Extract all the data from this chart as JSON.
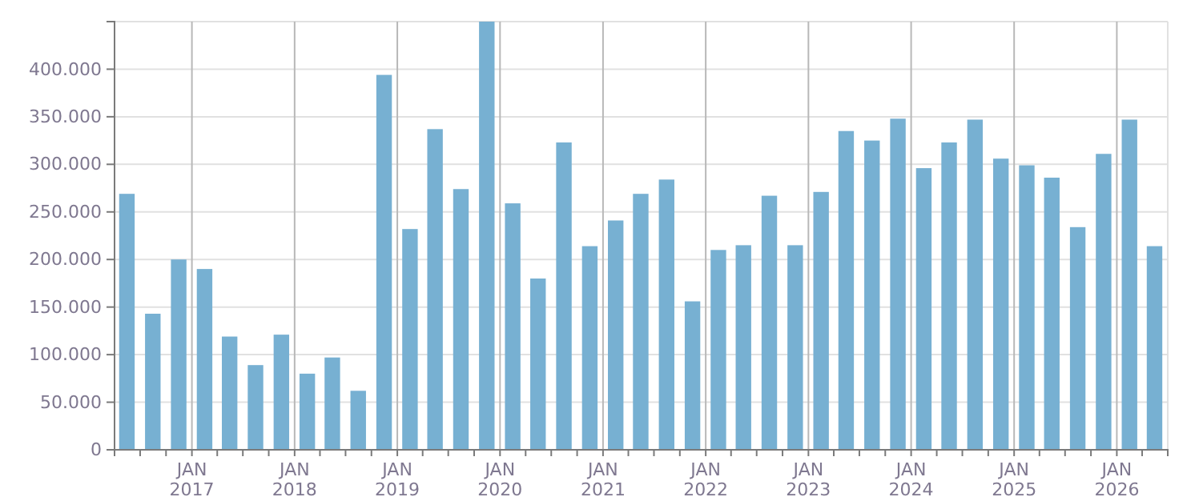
{
  "chart_data": {
    "type": "bar",
    "x": [
      "2016-05-15",
      "2016-08-15",
      "2016-11-15",
      "2017-02-15",
      "2017-05-15",
      "2017-08-15",
      "2017-11-15",
      "2018-02-15",
      "2018-05-15",
      "2018-08-15",
      "2018-11-15",
      "2019-02-15",
      "2019-05-15",
      "2019-08-15",
      "2019-11-15",
      "2020-02-15",
      "2020-05-15",
      "2020-08-15",
      "2020-11-15",
      "2021-02-15",
      "2021-05-15",
      "2021-08-15",
      "2021-11-15",
      "2022-02-15",
      "2022-05-15",
      "2022-08-15",
      "2022-11-15",
      "2023-02-15",
      "2023-05-15",
      "2023-08-15",
      "2023-11-15",
      "2024-02-15",
      "2024-05-15",
      "2024-08-15",
      "2024-11-15",
      "2025-02-15",
      "2025-05-15",
      "2025-08-15",
      "2025-11-15",
      "2026-02-15",
      "2026-05-15"
    ],
    "values": [
      269000,
      143000,
      200000,
      190000,
      119000,
      89000,
      121000,
      80000,
      97000,
      62000,
      394000,
      232000,
      337000,
      274000,
      450000,
      259000,
      180000,
      323000,
      214000,
      241000,
      269000,
      284000,
      156000,
      210000,
      215000,
      267000,
      215000,
      271000,
      335000,
      325000,
      348000,
      296000,
      323000,
      347000,
      306000,
      299000,
      286000,
      234000,
      311000,
      347000,
      214000
    ],
    "color": "#77b0d2",
    "xlim": [
      "2016-04",
      "2026-07"
    ],
    "xticks": [
      {
        "value": "2016-07",
        "label": null
      },
      {
        "value": "2016-10",
        "label": null
      },
      {
        "value": "2017-01",
        "label": "JAN 2017"
      },
      {
        "value": "2017-04",
        "label": null
      },
      {
        "value": "2017-07",
        "label": null
      },
      {
        "value": "2017-10",
        "label": null
      },
      {
        "value": "2018-01",
        "label": "JAN 2018"
      },
      {
        "value": "2018-04",
        "label": null
      },
      {
        "value": "2018-07",
        "label": null
      },
      {
        "value": "2018-10",
        "label": null
      },
      {
        "value": "2019-01",
        "label": "JAN 2019"
      },
      {
        "value": "2019-04",
        "label": null
      },
      {
        "value": "2019-07",
        "label": null
      },
      {
        "value": "2019-10",
        "label": null
      },
      {
        "value": "2020-01",
        "label": "JAN 2020"
      },
      {
        "value": "2020-04",
        "label": null
      },
      {
        "value": "2020-07",
        "label": null
      },
      {
        "value": "2020-10",
        "label": null
      },
      {
        "value": "2021-01",
        "label": "JAN 2021"
      },
      {
        "value": "2021-04",
        "label": null
      },
      {
        "value": "2021-07",
        "label": null
      },
      {
        "value": "2021-10",
        "label": null
      },
      {
        "value": "2022-01",
        "label": "JAN 2022"
      },
      {
        "value": "2022-04",
        "label": null
      },
      {
        "value": "2022-07",
        "label": null
      },
      {
        "value": "2022-10",
        "label": null
      },
      {
        "value": "2023-01",
        "label": "JAN 2023"
      },
      {
        "value": "2023-04",
        "label": null
      },
      {
        "value": "2023-07",
        "label": null
      },
      {
        "value": "2023-10",
        "label": null
      },
      {
        "value": "2024-01",
        "label": "JAN 2024"
      },
      {
        "value": "2024-04",
        "label": null
      },
      {
        "value": "2024-07",
        "label": null
      },
      {
        "value": "2024-10",
        "label": null
      },
      {
        "value": "2025-01",
        "label": "JAN 2025"
      },
      {
        "value": "2025-04",
        "label": null
      },
      {
        "value": "2025-07",
        "label": null
      },
      {
        "value": "2025-10",
        "label": null
      },
      {
        "value": "2026-01",
        "label": "JAN 2026"
      },
      {
        "value": "2026-04",
        "label": null
      }
    ],
    "ylim": [
      0,
      450000
    ],
    "yticks": [
      0,
      {
        "value": 50000,
        "label": "50.000"
      },
      {
        "value": 100000,
        "label": "100.000"
      },
      {
        "value": 150000,
        "label": "150.000"
      },
      {
        "value": 200000,
        "label": "200.000"
      },
      {
        "value": 250000,
        "label": "250.000"
      },
      {
        "value": 300000,
        "label": "300.000"
      },
      {
        "value": 350000,
        "label": "350.000"
      },
      {
        "value": 400000,
        "label": "400.000"
      }
    ],
    "grid": true
  }
}
